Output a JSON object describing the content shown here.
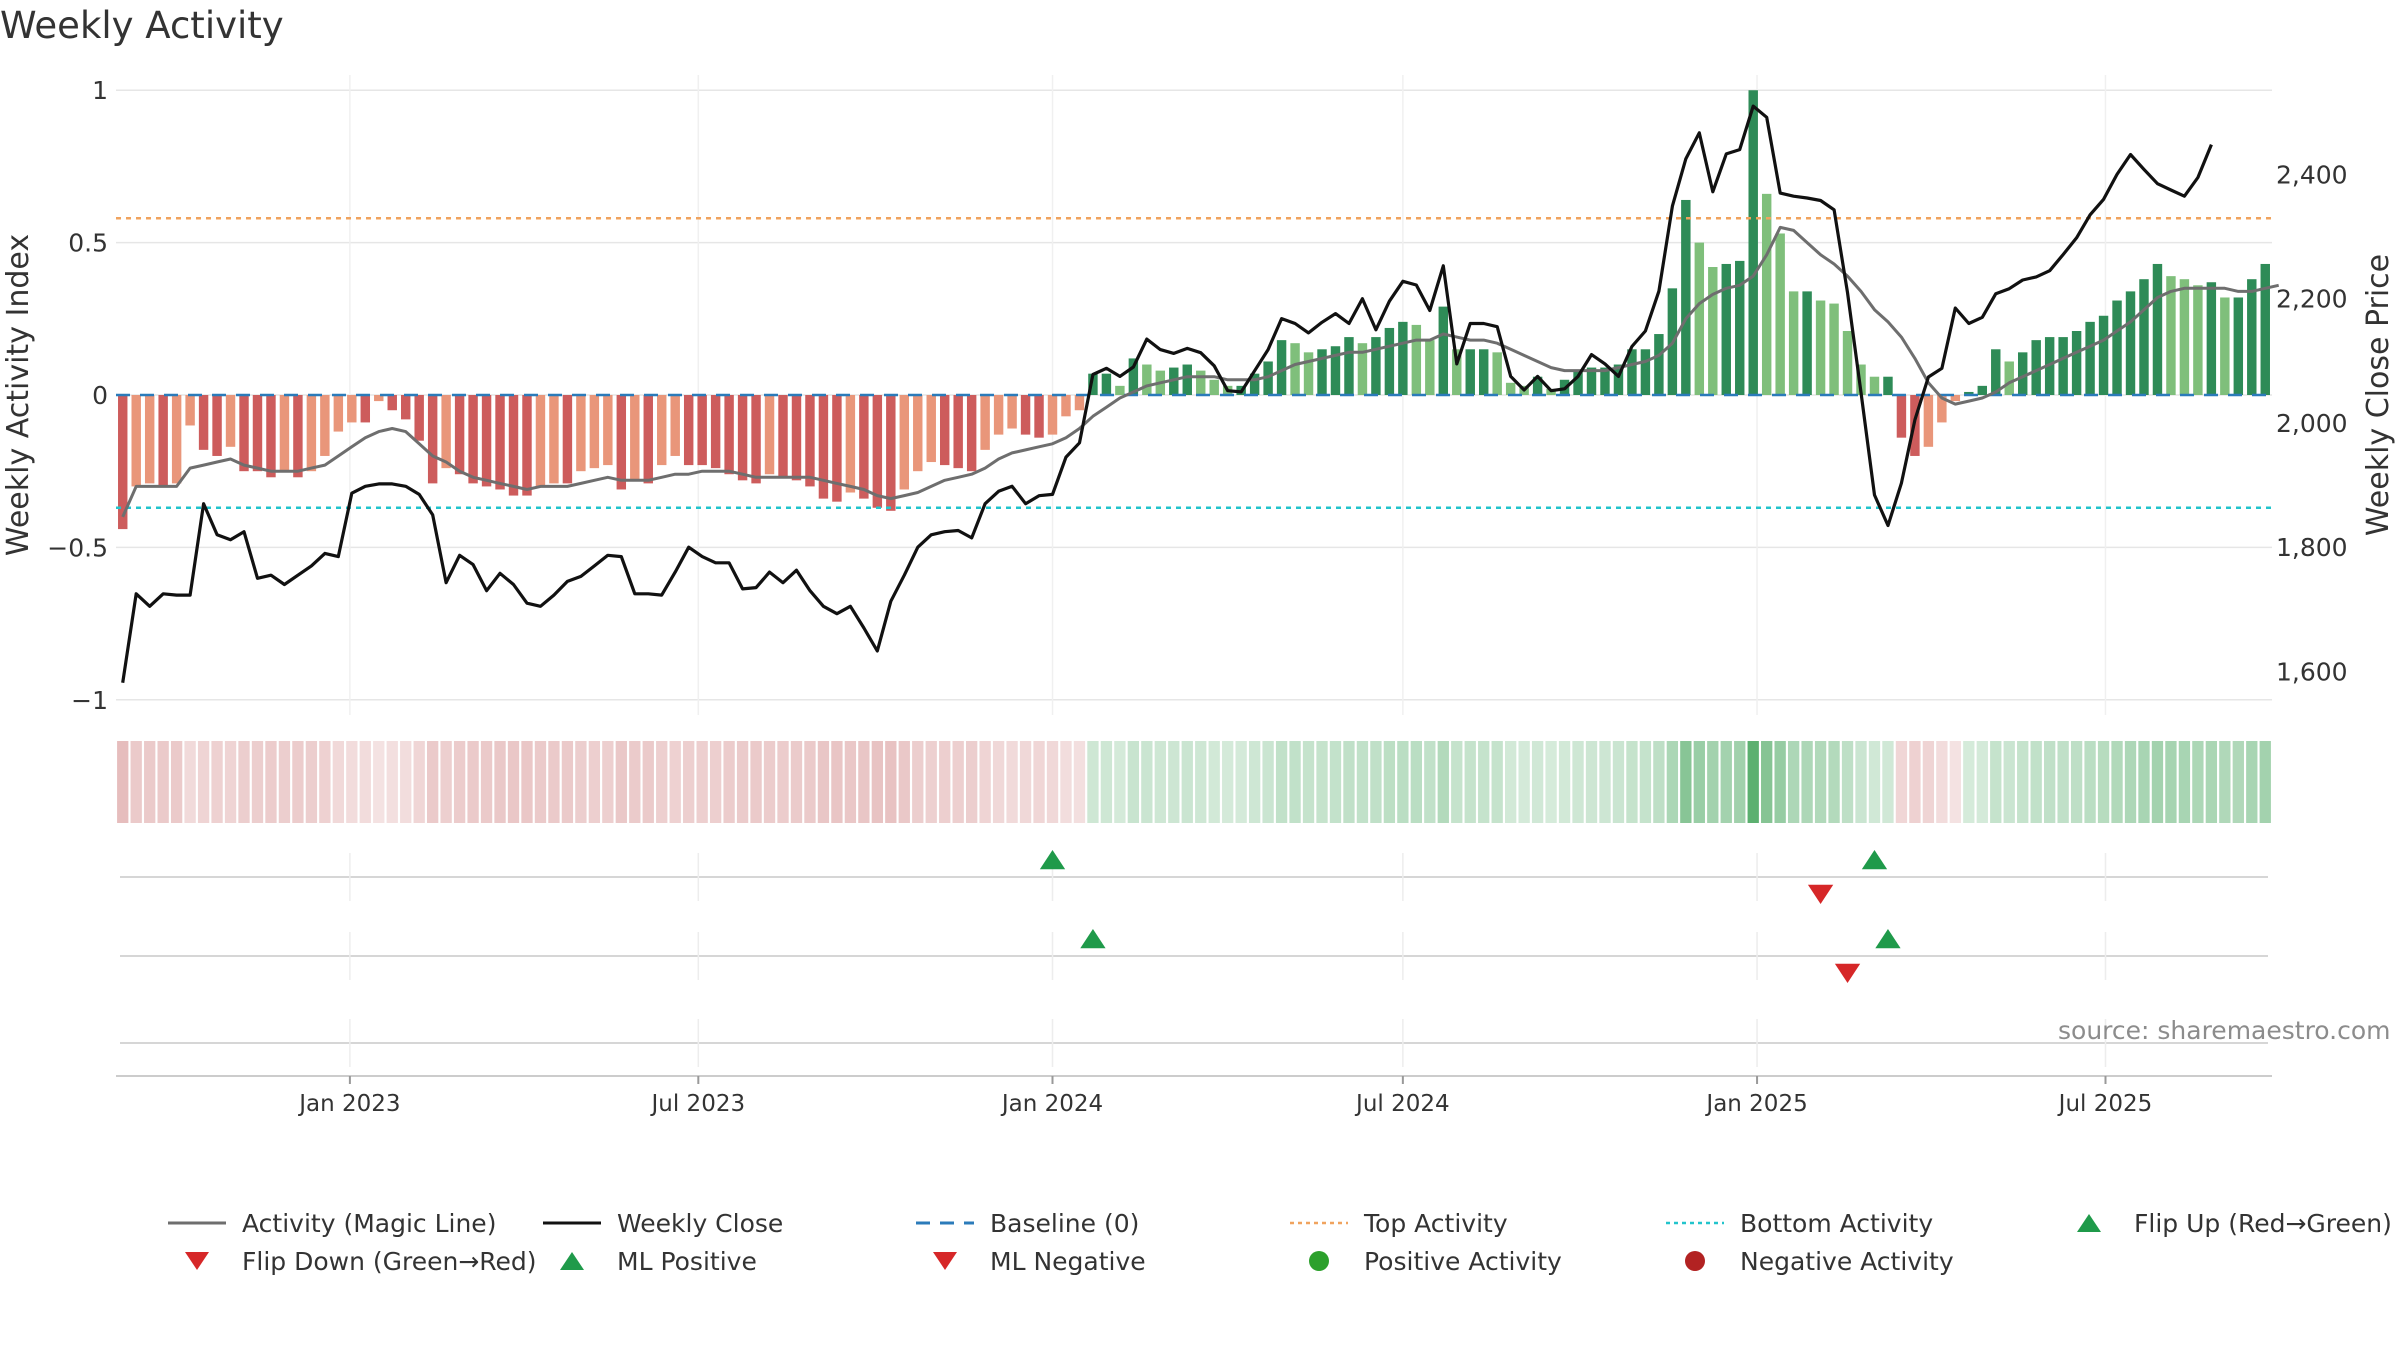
{
  "title": "Weekly Activity",
  "source": "source: sharemaestro.com",
  "chart_data": {
    "type": "bar",
    "left_axis": {
      "label": "Weekly Activity Index",
      "ylim": [
        -1.05,
        1.05
      ],
      "ticks": [
        {
          "v": 1,
          "label": "1"
        },
        {
          "v": 0.5,
          "label": "0.5"
        },
        {
          "v": 0,
          "label": "0"
        },
        {
          "v": -0.5,
          "label": "−0.5"
        },
        {
          "v": -1,
          "label": "−1"
        }
      ]
    },
    "right_axis": {
      "label": "Weekly Close Price",
      "ylim": [
        1530,
        2560
      ],
      "ticks": [
        {
          "v": 2400,
          "label": "2,400"
        },
        {
          "v": 2200,
          "label": "2,200"
        },
        {
          "v": 2000,
          "label": "2,000"
        },
        {
          "v": 1800,
          "label": "1,800"
        },
        {
          "v": 1600,
          "label": "1,600"
        }
      ]
    },
    "x_axis": {
      "start": "2022-09-05",
      "week_count": 159,
      "ticks": [
        {
          "date": "2023-01-01",
          "label": "Jan 2023"
        },
        {
          "date": "2023-07-01",
          "label": "Jul 2023"
        },
        {
          "date": "2024-01-01",
          "label": "Jan 2024"
        },
        {
          "date": "2024-07-01",
          "label": "Jul 2024"
        },
        {
          "date": "2025-01-01",
          "label": "Jan 2025"
        },
        {
          "date": "2025-07-01",
          "label": "Jul 2025"
        }
      ]
    },
    "top_activity": 0.58,
    "bottom_activity": -0.37,
    "baseline": 0,
    "activity": [
      -0.44,
      -0.3,
      -0.29,
      -0.3,
      -0.29,
      -0.1,
      -0.18,
      -0.2,
      -0.17,
      -0.25,
      -0.25,
      -0.27,
      -0.25,
      -0.27,
      -0.25,
      -0.2,
      -0.12,
      -0.09,
      -0.09,
      -0.02,
      -0.05,
      -0.08,
      -0.15,
      -0.29,
      -0.24,
      -0.26,
      -0.29,
      -0.3,
      -0.31,
      -0.33,
      -0.33,
      -0.3,
      -0.29,
      -0.29,
      -0.25,
      -0.24,
      -0.23,
      -0.31,
      -0.28,
      -0.29,
      -0.23,
      -0.2,
      -0.23,
      -0.23,
      -0.24,
      -0.26,
      -0.28,
      -0.29,
      -0.26,
      -0.27,
      -0.28,
      -0.3,
      -0.34,
      -0.35,
      -0.32,
      -0.34,
      -0.37,
      -0.38,
      -0.31,
      -0.25,
      -0.22,
      -0.23,
      -0.24,
      -0.25,
      -0.18,
      -0.13,
      -0.11,
      -0.13,
      -0.14,
      -0.13,
      -0.07,
      -0.05,
      0.07,
      0.07,
      0.03,
      0.12,
      0.1,
      0.08,
      0.09,
      0.1,
      0.08,
      0.05,
      0.03,
      0.03,
      0.07,
      0.11,
      0.18,
      0.17,
      0.14,
      0.15,
      0.16,
      0.19,
      0.17,
      0.19,
      0.22,
      0.24,
      0.23,
      0.18,
      0.29,
      0.15,
      0.15,
      0.15,
      0.14,
      0.04,
      0.03,
      0.06,
      0.02,
      0.05,
      0.08,
      0.09,
      0.09,
      0.1,
      0.15,
      0.15,
      0.2,
      0.35,
      0.64,
      0.5,
      0.42,
      0.43,
      0.44,
      1.0,
      0.66,
      0.53,
      0.34,
      0.34,
      0.31,
      0.3,
      0.21,
      0.1,
      0.06,
      0.06,
      -0.14,
      -0.2,
      -0.17,
      -0.09,
      -0.02,
      0.01,
      0.03,
      0.15,
      0.11,
      0.14,
      0.18,
      0.19,
      0.19,
      0.21,
      0.24,
      0.26,
      0.31,
      0.34,
      0.38,
      0.43,
      0.39,
      0.38,
      0.36,
      0.37,
      0.32,
      0.32,
      0.38,
      0.43
    ],
    "magic_line": [
      -0.4,
      -0.3,
      -0.3,
      -0.3,
      -0.3,
      -0.24,
      -0.23,
      -0.22,
      -0.21,
      -0.23,
      -0.24,
      -0.25,
      -0.25,
      -0.25,
      -0.24,
      -0.23,
      -0.2,
      -0.17,
      -0.14,
      -0.12,
      -0.11,
      -0.12,
      -0.16,
      -0.2,
      -0.22,
      -0.25,
      -0.27,
      -0.28,
      -0.29,
      -0.3,
      -0.31,
      -0.3,
      -0.3,
      -0.3,
      -0.29,
      -0.28,
      -0.27,
      -0.28,
      -0.28,
      -0.28,
      -0.27,
      -0.26,
      -0.26,
      -0.25,
      -0.25,
      -0.25,
      -0.26,
      -0.27,
      -0.27,
      -0.27,
      -0.27,
      -0.27,
      -0.28,
      -0.29,
      -0.3,
      -0.31,
      -0.33,
      -0.34,
      -0.33,
      -0.32,
      -0.3,
      -0.28,
      -0.27,
      -0.26,
      -0.24,
      -0.21,
      -0.19,
      -0.18,
      -0.17,
      -0.16,
      -0.14,
      -0.11,
      -0.07,
      -0.04,
      -0.01,
      0.01,
      0.03,
      0.04,
      0.05,
      0.06,
      0.06,
      0.06,
      0.05,
      0.05,
      0.05,
      0.06,
      0.08,
      0.1,
      0.11,
      0.12,
      0.13,
      0.14,
      0.14,
      0.15,
      0.16,
      0.17,
      0.18,
      0.18,
      0.2,
      0.19,
      0.18,
      0.18,
      0.17,
      0.15,
      0.13,
      0.11,
      0.09,
      0.08,
      0.08,
      0.08,
      0.08,
      0.09,
      0.1,
      0.11,
      0.13,
      0.17,
      0.25,
      0.3,
      0.33,
      0.35,
      0.36,
      0.39,
      0.46,
      0.55,
      0.54,
      0.5,
      0.46,
      0.43,
      0.39,
      0.34,
      0.28,
      0.24,
      0.19,
      0.12,
      0.04,
      -0.01,
      -0.03,
      -0.02,
      -0.01,
      0.01,
      0.04,
      0.06,
      0.08,
      0.1,
      0.12,
      0.14,
      0.16,
      0.18,
      0.21,
      0.24,
      0.28,
      0.32,
      0.34,
      0.35,
      0.35,
      0.35,
      0.35,
      0.34,
      0.34,
      0.35,
      0.36
    ],
    "weekly_close": [
      1582,
      1725,
      1705,
      1725,
      1723,
      1723,
      1870,
      1820,
      1812,
      1825,
      1750,
      1755,
      1740,
      1755,
      1770,
      1790,
      1785,
      1887,
      1898,
      1902,
      1902,
      1898,
      1885,
      1852,
      1743,
      1787,
      1772,
      1730,
      1758,
      1740,
      1710,
      1705,
      1723,
      1745,
      1753,
      1770,
      1787,
      1785,
      1725,
      1725,
      1723,
      1760,
      1800,
      1785,
      1775,
      1775,
      1733,
      1735,
      1760,
      1743,
      1763,
      1730,
      1705,
      1693,
      1705,
      1670,
      1633,
      1713,
      1755,
      1800,
      1820,
      1825,
      1827,
      1815,
      1870,
      1890,
      1898,
      1870,
      1883,
      1885,
      1945,
      1968,
      2078,
      2088,
      2075,
      2090,
      2135,
      2118,
      2112,
      2120,
      2113,
      2092,
      2052,
      2050,
      2084,
      2118,
      2168,
      2160,
      2145,
      2162,
      2176,
      2160,
      2200,
      2150,
      2196,
      2228,
      2222,
      2181,
      2253,
      2095,
      2160,
      2160,
      2155,
      2075,
      2053,
      2075,
      2052,
      2055,
      2075,
      2110,
      2095,
      2075,
      2123,
      2148,
      2212,
      2349,
      2425,
      2467,
      2372,
      2433,
      2440,
      2510,
      2492,
      2370,
      2365,
      2362,
      2358,
      2343,
      2210,
      2049,
      1884,
      1835,
      1903,
      2005,
      2074,
      2088,
      2185,
      2160,
      2170,
      2208,
      2216,
      2230,
      2235,
      2245,
      2271,
      2298,
      2335,
      2360,
      2400,
      2432,
      2408,
      2385,
      2375,
      2365,
      2395,
      2448
    ],
    "flip_up_weeks": [
      69,
      130
    ],
    "flip_down_weeks": [
      126
    ],
    "ml_positive_weeks": [
      72,
      131
    ],
    "ml_negative_weeks": [
      128
    ]
  },
  "legend": [
    {
      "label": "Activity (Magic Line)",
      "symbol": "line-solid",
      "color": "#6e6e6e"
    },
    {
      "label": "Weekly Close",
      "symbol": "line-solid",
      "color": "#111111"
    },
    {
      "label": "Baseline (0)",
      "symbol": "line-dash",
      "color": "#2b7bba"
    },
    {
      "label": "Top Activity",
      "symbol": "line-dot",
      "color": "#f0a35e"
    },
    {
      "label": "Bottom Activity",
      "symbol": "line-dot",
      "color": "#22c4cc"
    },
    {
      "label": "Flip Up (Red→Green)",
      "symbol": "triangle-up",
      "color": "#1f9a4a"
    },
    {
      "label": "Flip Down (Green→Red)",
      "symbol": "triangle-down",
      "color": "#d62728"
    },
    {
      "label": "ML Positive",
      "symbol": "triangle-up",
      "color": "#1f9a4a"
    },
    {
      "label": "ML Negative",
      "symbol": "triangle-down",
      "color": "#d62728"
    },
    {
      "label": "Positive Activity",
      "symbol": "circle",
      "color": "#2ca02c"
    },
    {
      "label": "Negative Activity",
      "symbol": "circle",
      "color": "#b22222"
    }
  ],
  "colors": {
    "pos_dark": "#2e8b57",
    "pos_light": "#7fbf7b",
    "neg_dark": "#cd5c5c",
    "neg_light": "#e9967a",
    "strip_pos": "#4aa760",
    "strip_neg": "#cf8080",
    "grid": "#e6e6e6"
  }
}
